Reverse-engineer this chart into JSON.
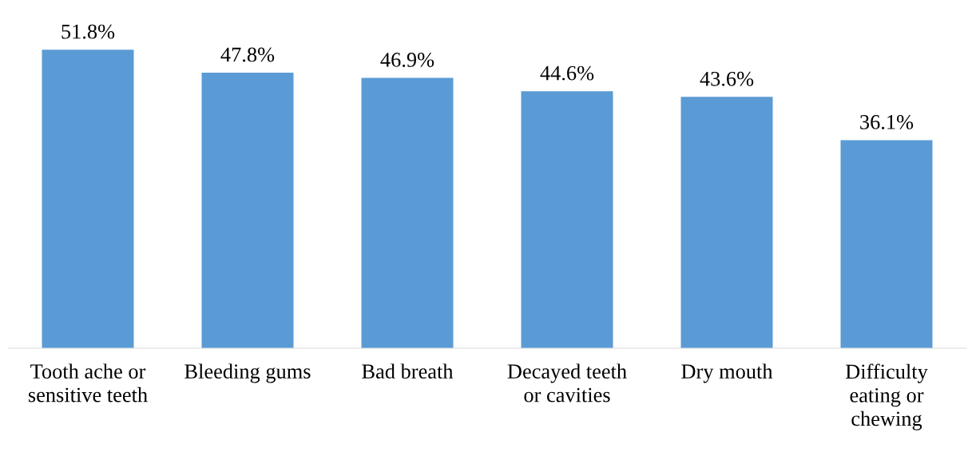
{
  "chart_data": {
    "type": "bar",
    "categories": [
      "Tooth ache or\nsensitive teeth",
      "Bleeding gums",
      "Bad breath",
      "Decayed teeth\nor cavities",
      "Dry mouth",
      "Difficulty\neating or\nchewing"
    ],
    "values": [
      51.8,
      47.8,
      46.9,
      44.6,
      43.6,
      36.1
    ],
    "value_labels": [
      "51.8%",
      "47.8%",
      "46.9%",
      "44.6%",
      "43.6%",
      "36.1%"
    ],
    "color": "#5b9bd5"
  }
}
